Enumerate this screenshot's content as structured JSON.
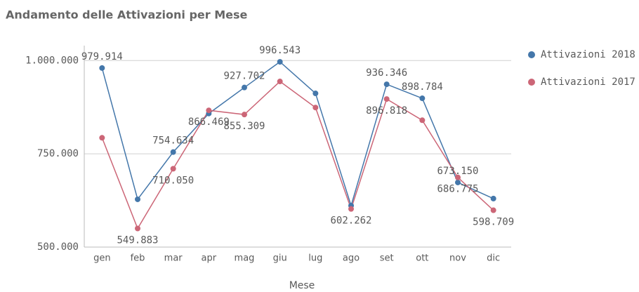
{
  "chart_data": {
    "type": "line",
    "title": "Andamento delle Attivazioni per Mese",
    "x_label": "Mese",
    "categories": [
      "gen",
      "feb",
      "mar",
      "apr",
      "mag",
      "giu",
      "lug",
      "ago",
      "set",
      "ott",
      "nov",
      "dic"
    ],
    "series": [
      {
        "name": "Attivazioni 2018",
        "color": "#4477aa",
        "values": [
          979914,
          628000,
          754634,
          858000,
          927702,
          996543,
          912000,
          611000,
          936346,
          898784,
          673150,
          630000
        ],
        "value_labels": [
          "979.914",
          null,
          "754.634",
          null,
          "927.702",
          "996.543",
          null,
          null,
          "936.346",
          "898.784",
          "673.150",
          null
        ]
      },
      {
        "name": "Attivazioni 2017",
        "color": "#cc6677",
        "values": [
          793000,
          549883,
          710050,
          866469,
          855309,
          944000,
          874000,
          602262,
          896818,
          840000,
          686775,
          598709
        ],
        "value_labels": [
          null,
          "549.883",
          "710.050",
          "866.469",
          "855.309",
          null,
          null,
          "602.262",
          "896.818",
          null,
          "686.775",
          "598.709"
        ]
      }
    ],
    "ylim": [
      500000,
      1040000
    ],
    "yticks": [
      {
        "value": 500000,
        "label": "500.000"
      },
      {
        "value": 750000,
        "label": "750.000"
      },
      {
        "value": 1000000,
        "label": "1.000.000"
      }
    ],
    "grid": true,
    "legend": "right"
  }
}
